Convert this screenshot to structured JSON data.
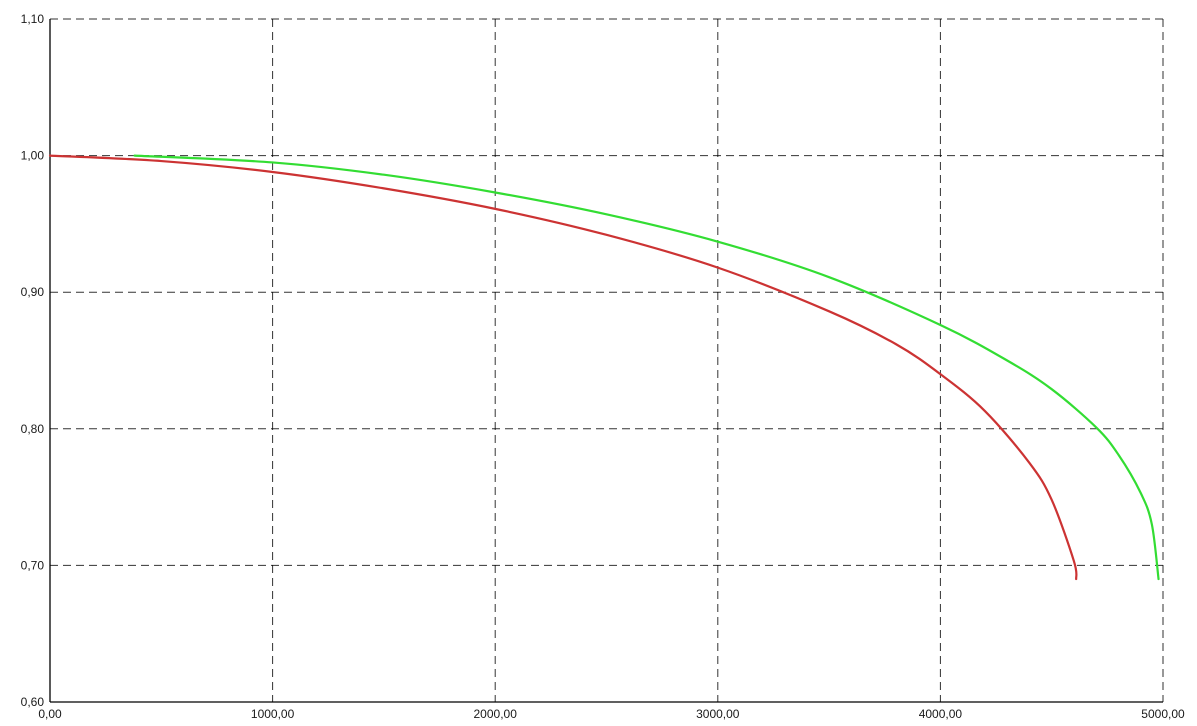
{
  "chart_data": {
    "type": "line",
    "title": "",
    "xlabel": "",
    "ylabel": "",
    "xlim": [
      0,
      5000
    ],
    "ylim": [
      0.6,
      1.1
    ],
    "x_ticks": [
      0,
      1000,
      2000,
      3000,
      4000,
      5000
    ],
    "y_ticks": [
      0.6,
      0.7,
      0.8,
      0.9,
      1.0,
      1.1
    ],
    "x_tick_labels": [
      "0,00",
      "1000,00",
      "2000,00",
      "3000,00",
      "4000,00",
      "5000,00"
    ],
    "y_tick_labels": [
      "0,60",
      "0,70",
      "0,80",
      "0,90",
      "1,00",
      "1,10"
    ],
    "grid": true,
    "grid_style": "dashed",
    "legend": "none",
    "series": [
      {
        "color": "#cc3333",
        "x": [
          0,
          500,
          1000,
          1500,
          2000,
          2500,
          3000,
          3500,
          3800,
          4000,
          4200,
          4400,
          4500,
          4600,
          4610
        ],
        "y": [
          1.0,
          0.996,
          0.988,
          0.976,
          0.961,
          0.942,
          0.918,
          0.886,
          0.862,
          0.84,
          0.813,
          0.775,
          0.748,
          0.703,
          0.69
        ]
      },
      {
        "color": "#33dd33",
        "x": [
          380,
          1000,
          1500,
          2000,
          2500,
          3000,
          3500,
          4000,
          4300,
          4500,
          4700,
          4800,
          4900,
          4950,
          4980
        ],
        "y": [
          1.0,
          0.995,
          0.986,
          0.973,
          0.957,
          0.937,
          0.911,
          0.876,
          0.85,
          0.829,
          0.801,
          0.781,
          0.753,
          0.73,
          0.69
        ]
      }
    ]
  }
}
